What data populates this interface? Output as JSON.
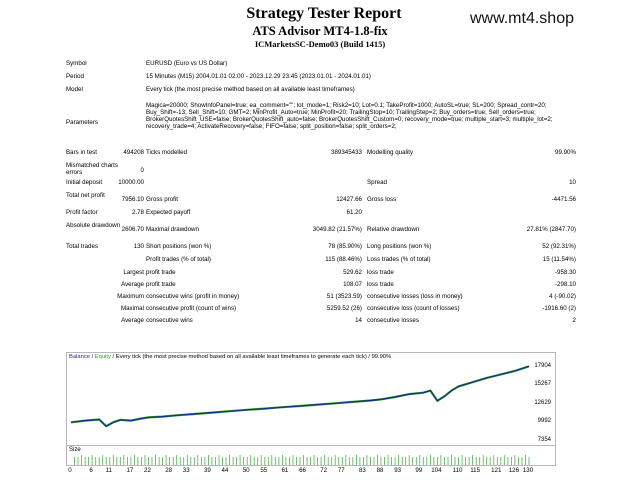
{
  "header": {
    "title": "Strategy Tester Report",
    "subtitle": "ATS Advisor MT4-1.8-fix",
    "server": "ICMarketsSC-Demo03 (Build 1415)",
    "watermark": "www.mt4.shop"
  },
  "info": {
    "symbol_label": "Symbol",
    "symbol_value": "EURUSD (Euro vs US Dollar)",
    "period_label": "Period",
    "period_value": "15 Minutes (M15) 2004.01.01 02:00 - 2023.12.29 23:45 (2023.01.01 - 2024.01.01)",
    "model_label": "Model",
    "model_value": "Every tick (the most precise method based on all available least timeframes)",
    "parameters_label": "Parameters",
    "parameters_value": "Magica=20000; ShowInfoPanel=true; ea_comment=\"\"; lot_mode=1; Risk2=10; Lot=0.1; TakeProfit=1000; AutoSL=true; SL=200; Spread_contr=20; Buy_Shift=-13; Sell_Shift=10; GMT=2; MinProfit_Auto=true; MinProfit=20; TrailingStop=10; TrailingStep=2; Buy_orders=true; Sell_orders=true; BrokerQuotesShift_USE=false; BrokerQuotesShift_auto=false; BrokerQuotesShift_Custom=0; recovery_mode=true; multiple_start=3; multiple_lot=2; recovery_trade=4; ActivateRecovery=false; FIFO=false; split_position=false; split_orders=2;"
  },
  "stats": {
    "bars_label": "Bars in test",
    "bars_value": "494208",
    "ticks_label": "Ticks modelled",
    "ticks_value": "389345433",
    "quality_label": "Modelling quality",
    "quality_value": "99.90%",
    "mismatched_label": "Mismatched charts errors",
    "mismatched_value": "0",
    "deposit_label": "Initial deposit",
    "deposit_value": "10000.00",
    "spread_label": "Spread",
    "spread_value": "10",
    "netprofit_label": "Total net profit",
    "netprofit_value": "7956.10",
    "grossprofit_label": "Gross profit",
    "grossprofit_value": "12427.66",
    "grossloss_label": "Gross loss",
    "grossloss_value": "-4471.56",
    "pf_label": "Profit factor",
    "pf_value": "2.78",
    "payoff_label": "Expected payoff",
    "payoff_value": "61.20",
    "absdd_label": "Absolute drawdown",
    "absdd_value": "2606.70",
    "maxdd_label": "Maximal drawdown",
    "maxdd_value": "3049.82 (21.57%)",
    "reldd_label": "Relative drawdown",
    "reldd_value": "27.81% (2847.70)",
    "trades_label": "Total trades",
    "trades_value": "130",
    "short_label": "Short positions (won %)",
    "short_value": "78 (85.90%)",
    "long_label": "Long positions (won %)",
    "long_value": "52 (92.31%)",
    "profit_trades_label": "Profit trades (% of total)",
    "profit_trades_value": "115 (88.46%)",
    "loss_trades_label": "Loss trades (% of total)",
    "loss_trades_value": "15 (11.54%)",
    "largest_label": "Largest",
    "largest_profit_label": "profit trade",
    "largest_profit_value": "529.62",
    "largest_loss_label": "loss trade",
    "largest_loss_value": "-958.30",
    "average_label": "Average",
    "average_profit_label": "profit trade",
    "average_profit_value": "108.07",
    "average_loss_label": "loss trade",
    "average_loss_value": "-298.10",
    "maximum_label": "Maximum",
    "max_cons_wins_label": "consecutive wins (profit in money)",
    "max_cons_wins_value": "51 (3523.59)",
    "max_cons_losses_label": "consecutive losses (loss in money)",
    "max_cons_losses_value": "4 (-90.02)",
    "maximal_label": "Maximal",
    "maximal_profit_label": "consecutive profit (count of wins)",
    "maximal_profit_value": "5259.52 (26)",
    "maximal_loss_label": "consecutive loss (count of losses)",
    "maximal_loss_value": "-1916.60 (2)",
    "average2_label": "Average",
    "avg_cons_wins_label": "consecutive wins",
    "avg_cons_wins_value": "14",
    "avg_cons_losses_label": "consecutive losses",
    "avg_cons_losses_value": "2"
  },
  "chart_legend": {
    "balance": "Balance",
    "sep": " / ",
    "equity": "Equity",
    "rest": " / Every tick (the most precise method based on all available least timeframes to generate each tick) / 99.90%"
  },
  "size_label": "Size",
  "chart_data": {
    "type": "line",
    "title": "",
    "xlabel": "",
    "ylabel": "",
    "y_ticks": [
      "17904",
      "15267",
      "12629",
      "9992",
      "7354"
    ],
    "x_ticks": [
      "0",
      "6",
      "11",
      "17",
      "22",
      "28",
      "33",
      "39",
      "44",
      "50",
      "55",
      "61",
      "66",
      "72",
      "77",
      "83",
      "88",
      "93",
      "99",
      "104",
      "110",
      "115",
      "121",
      "126",
      "130"
    ],
    "xlim": [
      0,
      130
    ],
    "ylim": [
      7354,
      18700
    ],
    "grid": false,
    "colors": {
      "balance": "#1a2a8c",
      "equity": "#2aa02a",
      "size": "#4caf50"
    },
    "series": [
      {
        "name": "Balance",
        "x": [
          0,
          4,
          8,
          10,
          12,
          14,
          17,
          20,
          22,
          26,
          30,
          35,
          40,
          45,
          50,
          55,
          60,
          65,
          70,
          75,
          80,
          85,
          88,
          92,
          96,
          100,
          102,
          104,
          106,
          108,
          110,
          114,
          118,
          122,
          126,
          130
        ],
        "values": [
          10000,
          10250,
          10400,
          9450,
          10000,
          10350,
          10250,
          10550,
          10700,
          10820,
          11000,
          11180,
          11380,
          11580,
          11780,
          11950,
          12150,
          12320,
          12520,
          12700,
          12900,
          13100,
          13250,
          13600,
          14000,
          14200,
          14500,
          13050,
          13700,
          14500,
          15100,
          15700,
          16300,
          16800,
          17300,
          17950
        ]
      }
    ]
  }
}
